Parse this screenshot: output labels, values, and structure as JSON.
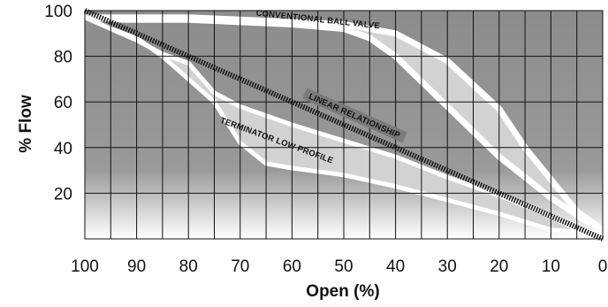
{
  "chart_data": {
    "type": "area",
    "xlabel": "Open (%)",
    "ylabel": "% Flow",
    "x_ticks": [
      100,
      90,
      80,
      70,
      60,
      50,
      40,
      30,
      20,
      10,
      0
    ],
    "y_ticks": [
      100,
      80,
      60,
      40,
      20
    ],
    "xlim": [
      100,
      0
    ],
    "ylim": [
      0,
      100
    ],
    "grid": true,
    "series": [
      {
        "name": "CONVENTIONAL BALL VALVE",
        "upper": [
          [
            100,
            97
          ],
          [
            90,
            97
          ],
          [
            80,
            97
          ],
          [
            70,
            96
          ],
          [
            60,
            95
          ],
          [
            50,
            94
          ],
          [
            40,
            90
          ],
          [
            30,
            78
          ],
          [
            20,
            57
          ],
          [
            15,
            40
          ],
          [
            10,
            26
          ],
          [
            5,
            12
          ],
          [
            0,
            4
          ]
        ],
        "lower": [
          [
            0,
            4
          ],
          [
            4,
            9
          ],
          [
            10,
            18
          ],
          [
            15,
            27
          ],
          [
            20,
            36
          ],
          [
            25,
            47
          ],
          [
            30,
            58
          ],
          [
            35,
            69
          ],
          [
            40,
            80
          ],
          [
            45,
            88
          ],
          [
            50,
            92
          ],
          [
            60,
            94
          ],
          [
            70,
            95
          ],
          [
            80,
            96
          ],
          [
            90,
            96
          ],
          [
            92,
            96
          ]
        ]
      },
      {
        "name": "TERMINATOR LOW PROFILE",
        "upper": [
          [
            100,
            97
          ],
          [
            95,
            92
          ],
          [
            90,
            87
          ],
          [
            85,
            81
          ],
          [
            80,
            77
          ],
          [
            75,
            64
          ],
          [
            70,
            58
          ],
          [
            60,
            50
          ],
          [
            50,
            43
          ],
          [
            40,
            36
          ],
          [
            30,
            27
          ],
          [
            20,
            19
          ],
          [
            10,
            10
          ],
          [
            5,
            4
          ],
          [
            0,
            2
          ]
        ],
        "lower": [
          [
            0,
            2
          ],
          [
            5,
            3
          ],
          [
            10,
            4
          ],
          [
            20,
            11
          ],
          [
            30,
            17
          ],
          [
            40,
            23
          ],
          [
            50,
            28
          ],
          [
            60,
            31
          ],
          [
            65,
            33
          ],
          [
            70,
            42
          ],
          [
            75,
            60
          ],
          [
            80,
            70
          ],
          [
            85,
            80
          ],
          [
            90,
            88
          ],
          [
            95,
            92
          ],
          [
            100,
            97
          ]
        ]
      },
      {
        "name": "LINEAR RELATIONSHIP",
        "values": [
          [
            100,
            100
          ],
          [
            0,
            0
          ]
        ]
      }
    ],
    "colors": {
      "plot_background": "#8c8c8c",
      "conventional_fill": "#d2d2d2",
      "conventional_outline": "#ffffff",
      "terminator_fill": "#d2d2d2",
      "terminator_outline": "#ffffff",
      "linear_label_band": "#7a7a7a",
      "grid_line": "#111111"
    }
  }
}
